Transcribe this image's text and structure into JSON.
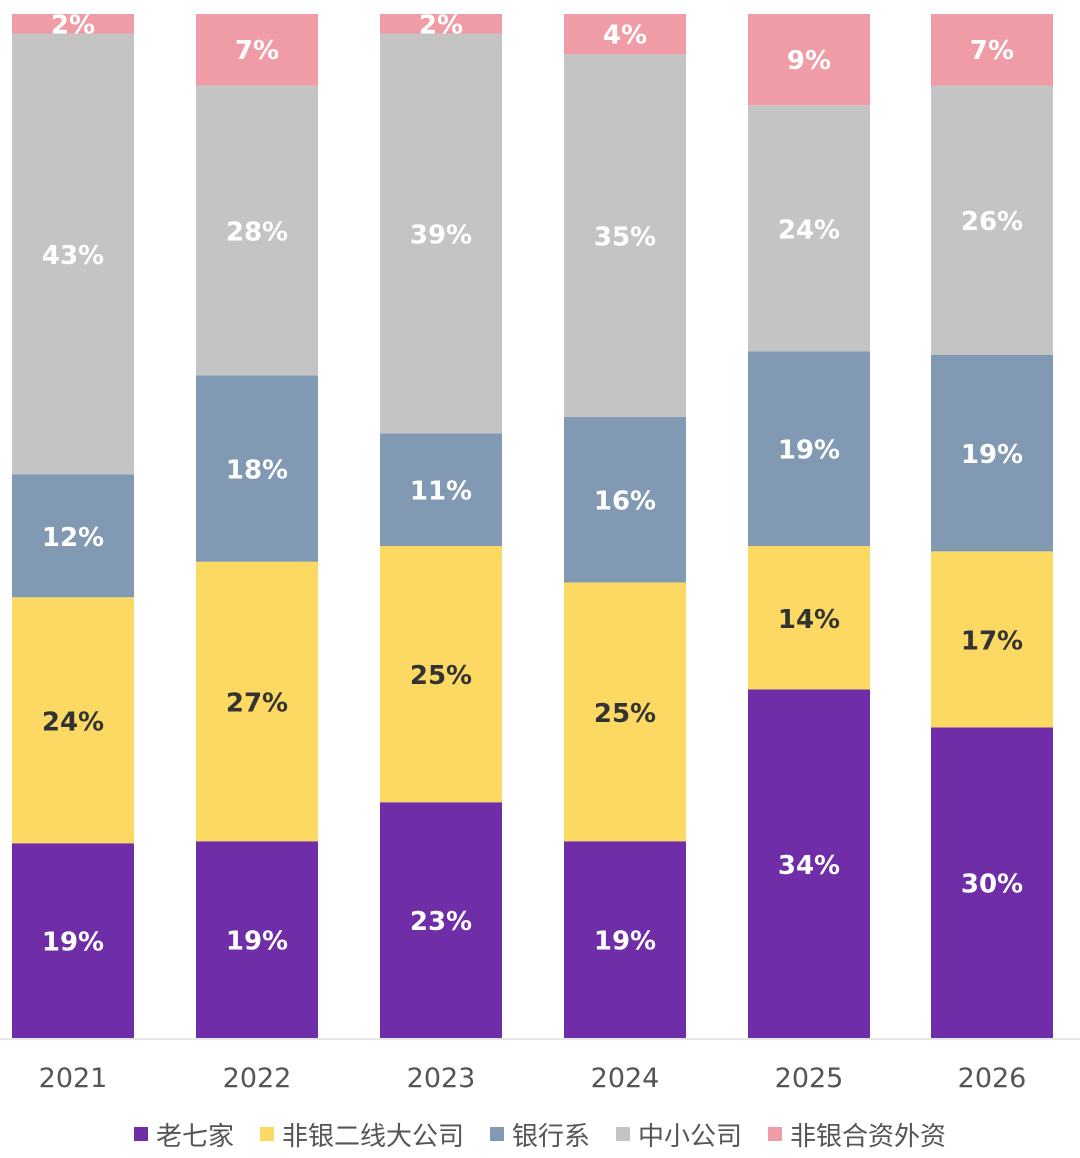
{
  "chart_data": {
    "type": "bar",
    "stacked": true,
    "percent_stacked": true,
    "categories": [
      "2021",
      "2022",
      "2023",
      "2024",
      "2025",
      "2026"
    ],
    "series": [
      {
        "name": "老七家",
        "color": "#6f2da8",
        "values": [
          19,
          19,
          23,
          19,
          34,
          30
        ],
        "labels": [
          "19%",
          "19%",
          "23%",
          "19%",
          "34%",
          "30%"
        ],
        "label_color": "#ffffff"
      },
      {
        "name": "非银二线大公司",
        "color": "#fbd962",
        "values": [
          24,
          27,
          25,
          25,
          14,
          17
        ],
        "labels": [
          "24%",
          "27%",
          "25%",
          "25%",
          "14%",
          "17%"
        ],
        "label_color": "#333333"
      },
      {
        "name": "银行系",
        "color": "#8299b4",
        "values": [
          12,
          18,
          11,
          16,
          19,
          19
        ],
        "labels": [
          "12%",
          "18%",
          "11%",
          "16%",
          "19%",
          "19%"
        ],
        "label_color": "#ffffff"
      },
      {
        "name": "中小公司",
        "color": "#c4c4c4",
        "values": [
          43,
          28,
          39,
          35,
          24,
          26
        ],
        "labels": [
          "43%",
          "28%",
          "39%",
          "35%",
          "24%",
          "26%"
        ],
        "label_color": "#ffffff"
      },
      {
        "name": "非银合资外资",
        "color": "#f09ca6",
        "values": [
          2,
          7,
          2,
          4,
          9,
          7
        ],
        "labels": [
          "2%",
          "7%",
          "2%",
          "4%",
          "9%",
          "7%"
        ],
        "label_color": "#ffffff"
      }
    ],
    "legend_position": "bottom",
    "grid": false,
    "ylim": [
      0,
      100
    ]
  }
}
